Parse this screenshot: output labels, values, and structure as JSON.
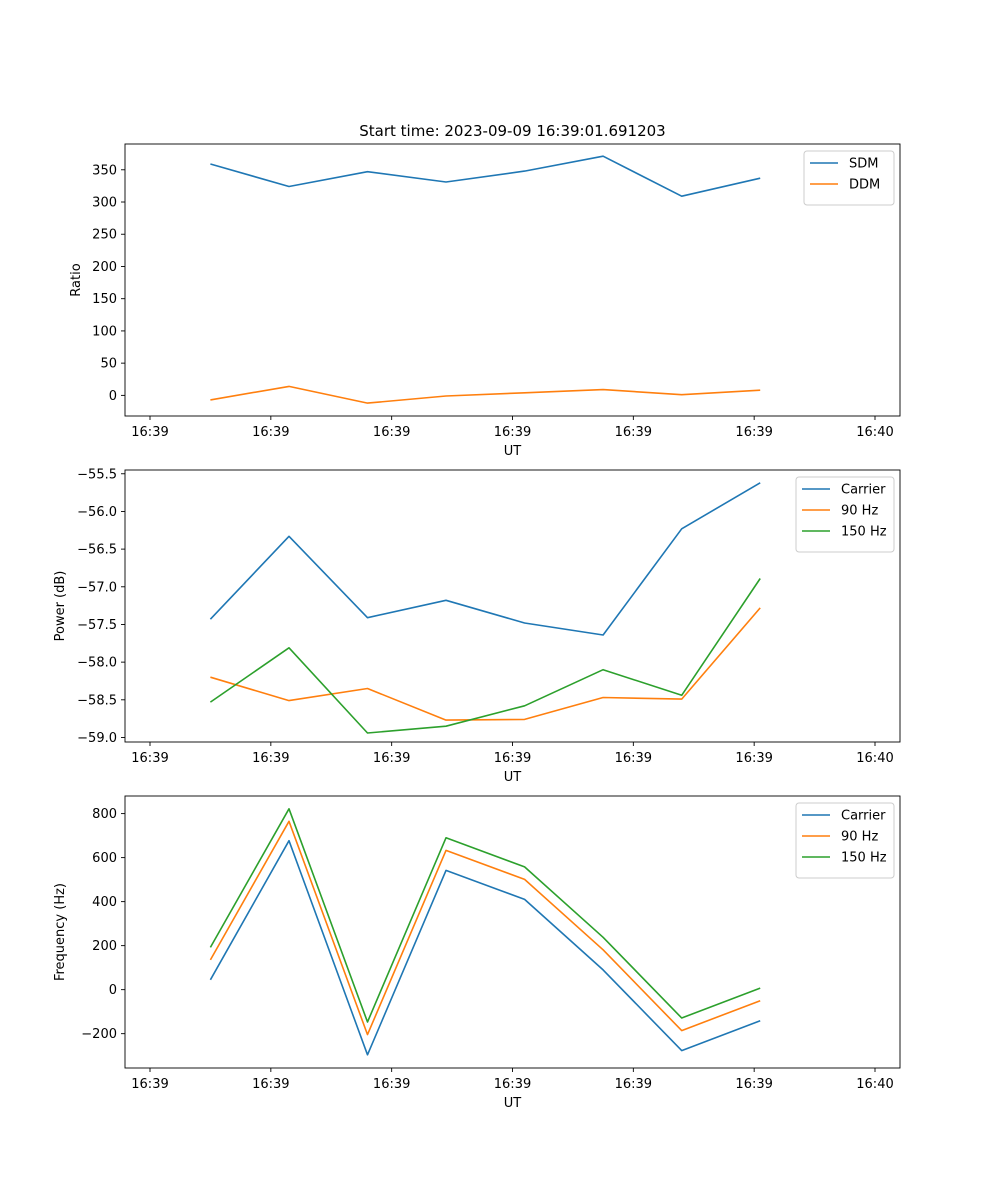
{
  "figure": {
    "title": "Start time: 2023-09-09 16:39:01.691203"
  },
  "chart_data": [
    {
      "type": "line",
      "xlabel": "UT",
      "ylabel": "Ratio",
      "xtick_labels": [
        "16:39",
        "16:39",
        "16:39",
        "16:39",
        "16:39",
        "16:39",
        "16:40"
      ],
      "xlim": [
        0,
        6
      ],
      "xticks": [
        0,
        1,
        2,
        3,
        4,
        5,
        6
      ],
      "ylim": [
        -32,
        390
      ],
      "yticks": [
        0,
        50,
        100,
        150,
        200,
        250,
        300,
        350
      ],
      "ytick_labels": [
        "0",
        "50",
        "100",
        "150",
        "200",
        "250",
        "300",
        "350"
      ],
      "legend_position": "top-right",
      "x": [
        0.5,
        1.15,
        1.8,
        2.45,
        3.1,
        3.75,
        4.4,
        5.05
      ],
      "series": [
        {
          "name": "SDM",
          "color": "#1f77b4",
          "values": [
            359,
            324,
            347,
            331,
            348,
            371,
            309,
            337
          ]
        },
        {
          "name": "DDM",
          "color": "#ff7f0e",
          "values": [
            -7,
            14,
            -12,
            -1,
            4,
            9,
            1,
            8
          ]
        }
      ]
    },
    {
      "type": "line",
      "xlabel": "UT",
      "ylabel": "Power (dB)",
      "xtick_labels": [
        "16:39",
        "16:39",
        "16:39",
        "16:39",
        "16:39",
        "16:39",
        "16:40"
      ],
      "xlim": [
        0,
        6
      ],
      "xticks": [
        0,
        1,
        2,
        3,
        4,
        5,
        6
      ],
      "ylim": [
        -59.06,
        -55.45
      ],
      "yticks": [
        -59.0,
        -58.5,
        -58.0,
        -57.5,
        -57.0,
        -56.5,
        -56.0,
        -55.5
      ],
      "ytick_labels": [
        "−59.0",
        "−58.5",
        "−58.0",
        "−57.5",
        "−57.0",
        "−56.5",
        "−56.0",
        "−55.5"
      ],
      "legend_position": "top-right",
      "x": [
        0.5,
        1.15,
        1.8,
        2.45,
        3.1,
        3.75,
        4.4,
        5.05
      ],
      "series": [
        {
          "name": "Carrier",
          "color": "#1f77b4",
          "values": [
            -57.43,
            -56.33,
            -57.41,
            -57.18,
            -57.48,
            -57.64,
            -56.23,
            -55.62
          ]
        },
        {
          "name": "90 Hz",
          "color": "#ff7f0e",
          "values": [
            -58.2,
            -58.51,
            -58.35,
            -58.77,
            -58.76,
            -58.47,
            -58.49,
            -57.28
          ]
        },
        {
          "name": "150 Hz",
          "color": "#2ca02c",
          "values": [
            -58.53,
            -57.81,
            -58.94,
            -58.85,
            -58.58,
            -58.1,
            -58.44,
            -56.89
          ]
        }
      ]
    },
    {
      "type": "line",
      "xlabel": "UT",
      "ylabel": "Frequency (Hz)",
      "xtick_labels": [
        "16:39",
        "16:39",
        "16:39",
        "16:39",
        "16:39",
        "16:39",
        "16:40"
      ],
      "xlim": [
        0,
        6
      ],
      "xticks": [
        0,
        1,
        2,
        3,
        4,
        5,
        6
      ],
      "ylim": [
        -356,
        880
      ],
      "yticks": [
        -200,
        0,
        200,
        400,
        600,
        800
      ],
      "ytick_labels": [
        "−200",
        "0",
        "200",
        "400",
        "600",
        "800"
      ],
      "legend_position": "top-right",
      "x": [
        0.5,
        1.15,
        1.8,
        2.45,
        3.1,
        3.75,
        4.4,
        5.05
      ],
      "series": [
        {
          "name": "Carrier",
          "color": "#1f77b4",
          "values": [
            45,
            677,
            -296,
            542,
            410,
            90,
            -277,
            -141
          ]
        },
        {
          "name": "90 Hz",
          "color": "#ff7f0e",
          "values": [
            135,
            765,
            -204,
            633,
            501,
            181,
            -186,
            -50
          ]
        },
        {
          "name": "150 Hz",
          "color": "#2ca02c",
          "values": [
            192,
            822,
            -147,
            690,
            558,
            238,
            -129,
            7
          ]
        }
      ]
    }
  ]
}
